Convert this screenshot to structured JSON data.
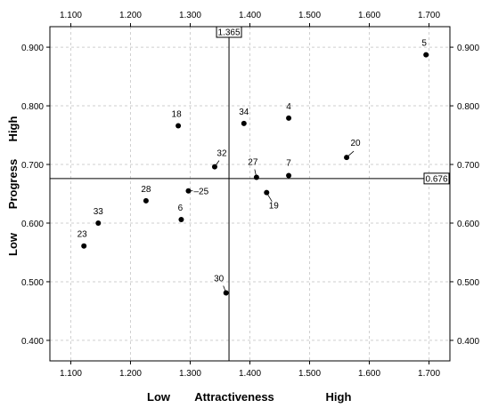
{
  "chart_data": {
    "type": "scatter",
    "xlim": [
      1.065,
      1.735
    ],
    "ylim": [
      0.365,
      0.935
    ],
    "x_ticks": [
      1.1,
      1.2,
      1.3,
      1.4,
      1.5,
      1.6,
      1.7
    ],
    "x_tick_labels": [
      "1.100",
      "1.200",
      "1.300",
      "1.400",
      "1.500",
      "1.600",
      "1.700"
    ],
    "y_ticks": [
      0.4,
      0.5,
      0.6,
      0.7,
      0.8,
      0.9
    ],
    "y_tick_labels": [
      "0.400",
      "0.500",
      "0.600",
      "0.700",
      "0.800",
      "0.900"
    ],
    "grid": true,
    "xlabel": {
      "low": "Low",
      "main": "Attractiveness",
      "high": "High"
    },
    "ylabel": {
      "low": "Low",
      "main": "Progress",
      "high": "High"
    },
    "ref_x": {
      "value": 1.365,
      "label": "1.365"
    },
    "ref_y": {
      "value": 0.676,
      "label": "0.676"
    },
    "points": [
      {
        "label": "5",
        "x": 1.695,
        "y": 0.887
      },
      {
        "label": "4",
        "x": 1.465,
        "y": 0.779
      },
      {
        "label": "34",
        "x": 1.39,
        "y": 0.77
      },
      {
        "label": "18",
        "x": 1.28,
        "y": 0.766
      },
      {
        "label": "20",
        "x": 1.562,
        "y": 0.712
      },
      {
        "label": "32",
        "x": 1.341,
        "y": 0.696
      },
      {
        "label": "7",
        "x": 1.465,
        "y": 0.681
      },
      {
        "label": "27",
        "x": 1.411,
        "y": 0.678
      },
      {
        "label": "19",
        "x": 1.428,
        "y": 0.652
      },
      {
        "label": "25",
        "x": 1.297,
        "y": 0.655
      },
      {
        "label": "28",
        "x": 1.226,
        "y": 0.638
      },
      {
        "label": "6",
        "x": 1.285,
        "y": 0.606
      },
      {
        "label": "33",
        "x": 1.146,
        "y": 0.6
      },
      {
        "label": "23",
        "x": 1.122,
        "y": 0.561
      },
      {
        "label": "30",
        "x": 1.36,
        "y": 0.481
      }
    ]
  }
}
